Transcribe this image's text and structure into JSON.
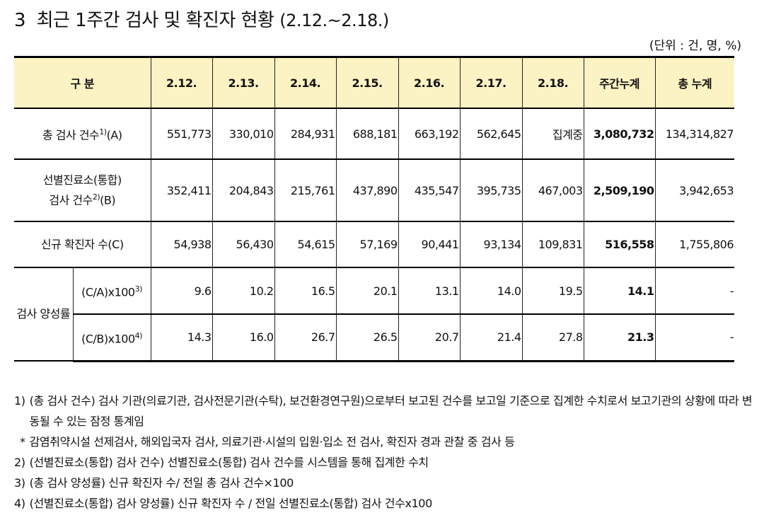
{
  "title": "3  최근 1주간 검사 및 확진자 현황",
  "title_period": "(2.12.~2.18.)",
  "unit": "(단위 : 건, 명, %)",
  "table": {
    "header": [
      "구 분",
      "2.12.",
      "2.13.",
      "2.14.",
      "2.15.",
      "2.16.",
      "2.17.",
      "2.18.",
      "주간누계",
      "총 누계"
    ],
    "rows": [
      {
        "label": {
          "text": "총 검사 건수",
          "sup": "1)",
          "suffix": "(A)"
        },
        "values": [
          "551,773",
          "330,010",
          "284,931",
          "688,181",
          "663,192",
          "562,645",
          "집계중",
          "3,080,732",
          "134,314,827"
        ]
      },
      {
        "label": {
          "line1": "선별진료소(통합)",
          "text": "검사 건수",
          "sup": "2)",
          "suffix": "(B)"
        },
        "values": [
          "352,411",
          "204,843",
          "215,761",
          "437,890",
          "435,547",
          "395,735",
          "467,003",
          "2,509,190",
          "3,942,653"
        ]
      },
      {
        "label": {
          "text": "신규 확진자 수(C)"
        },
        "values": [
          "54,938",
          "56,430",
          "54,615",
          "57,169",
          "90,441",
          "93,134",
          "109,831",
          "516,558",
          "1,755,806"
        ]
      }
    ],
    "positivity": {
      "label": "검사 양성률",
      "rows": [
        {
          "label": {
            "text": "(C/A)x100",
            "sup": "3)"
          },
          "values": [
            "9.6",
            "10.2",
            "16.5",
            "20.1",
            "13.1",
            "14.0",
            "19.5",
            "14.1",
            "-"
          ]
        },
        {
          "label": {
            "text": "(C/B)x100",
            "sup": "4)"
          },
          "values": [
            "14.3",
            "16.0",
            "26.7",
            "26.5",
            "20.7",
            "21.4",
            "27.8",
            "21.3",
            "-"
          ]
        }
      ]
    }
  },
  "notes": [
    {
      "marker": "1)",
      "text": "(총 검사 건수) 검사 기관(의료기관, 검사전문기관(수탁), 보건환경연구원)으로부터 보고된 건수를 보고일 기준으로 집계한 수치로서 보고기관의 상황에 따라 변동될 수 있는 잠정 통계임"
    },
    {
      "marker": "*",
      "text": "감염취약시설 선제검사, 해외입국자 검사, 의료기관·시설의 입원·입소 전 검사, 확진자 경과 관찰 중 검사 등"
    },
    {
      "marker": "2)",
      "text": "(선별진료소(통합) 검사 건수) 선별진료소(통합) 검사 건수를 시스템을 통해 집계한 수치"
    },
    {
      "marker": "3)",
      "text": "(총 검사 양성률) 신규 확진자 수/ 전일 총 검사 건수×100"
    },
    {
      "marker": "4)",
      "text": "(선별진료소(통합) 검사 양성률) 신규 확진자 수 / 전일 선별진료소(통합) 검사 건수x100"
    }
  ]
}
